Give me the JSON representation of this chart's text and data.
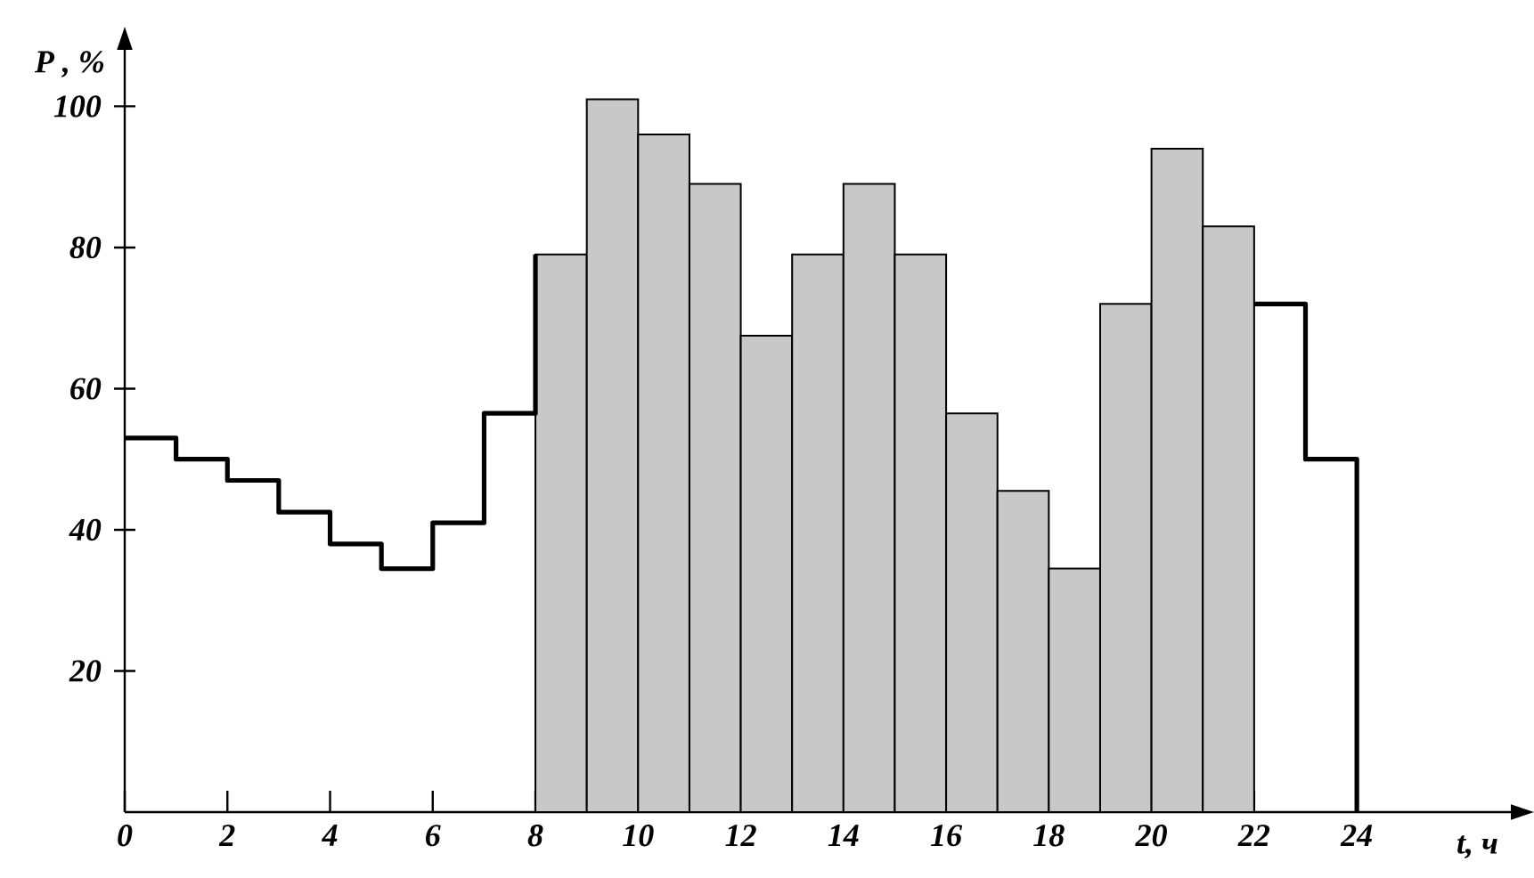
{
  "chart_data": {
    "type": "step",
    "xlabel": "t, ч",
    "ylabel": "P , %",
    "xlim": [
      0,
      27
    ],
    "ylim": [
      0,
      108
    ],
    "xticks": [
      0,
      2,
      4,
      6,
      8,
      10,
      12,
      14,
      16,
      18,
      20,
      22,
      24
    ],
    "yticks": [
      20,
      40,
      60,
      80,
      100
    ],
    "series": [
      {
        "color": "#000000",
        "x": [
          0,
          1,
          2,
          3,
          4,
          5,
          6,
          7,
          8,
          22,
          23,
          24
        ],
        "values": [
          53,
          50,
          47,
          42.5,
          38,
          34.5,
          41,
          56.5,
          79,
          72,
          50,
          0
        ]
      },
      {
        "type": "bar",
        "color": "#c8c8c8",
        "x": [
          8.5,
          9.5,
          10.5,
          11.5,
          12.5,
          13.5,
          14.5,
          15.5,
          16.5,
          17.5,
          18.5,
          19.5,
          20.5,
          21.5
        ],
        "values": [
          79,
          101,
          96,
          89,
          67.5,
          79,
          89,
          79,
          56.5,
          45.5,
          34.5,
          72,
          94,
          83
        ]
      }
    ]
  }
}
